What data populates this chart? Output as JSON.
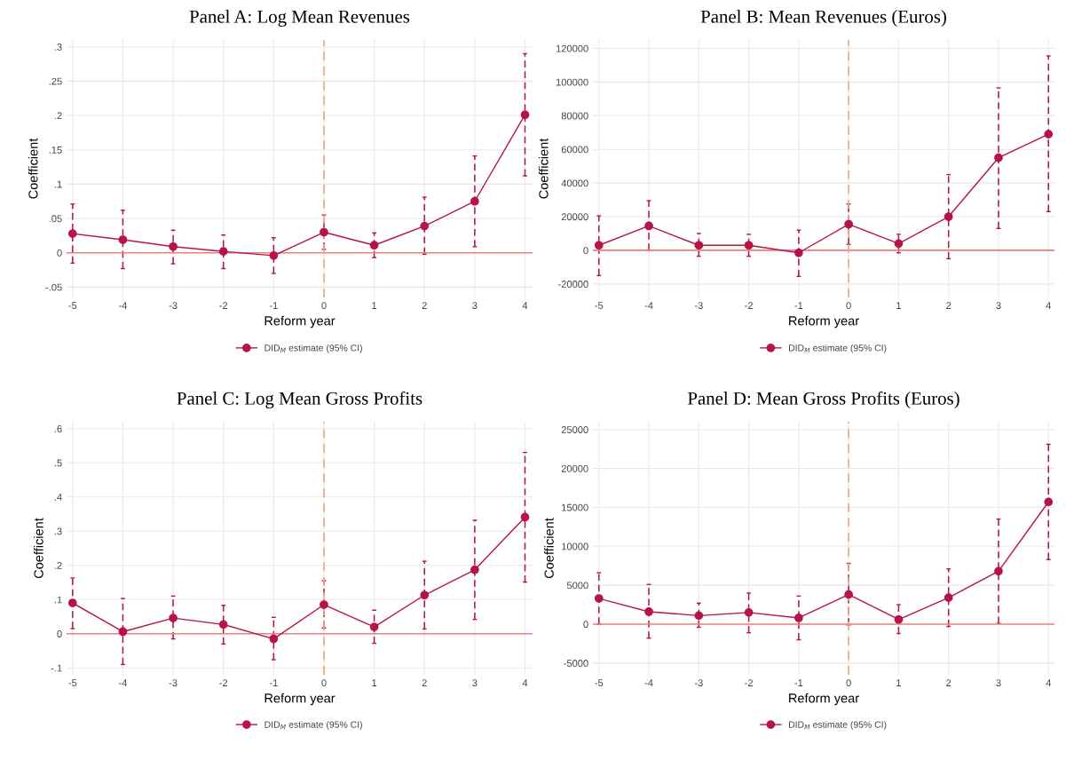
{
  "chart_data": [
    {
      "type": "line",
      "title": "Panel A: Log Mean Revenues",
      "xlabel": "Reform year",
      "ylabel": "Coefficient",
      "x": [
        -5,
        -4,
        -3,
        -2,
        -1,
        0,
        1,
        2,
        3,
        4
      ],
      "series": [
        {
          "name": "DID$_{M}$ estimate (95% CI)",
          "color": "#b5134a",
          "values": [
            0.028,
            0.019,
            0.009,
            0.002,
            -0.004,
            0.03,
            0.011,
            0.039,
            0.075,
            0.201
          ],
          "errors": [
            [
              -0.015,
              0.071
            ],
            [
              -0.023,
              0.062
            ],
            [
              -0.016,
              0.033
            ],
            [
              -0.023,
              0.026
            ],
            [
              -0.03,
              0.022
            ],
            [
              0.005,
              0.055
            ],
            [
              -0.007,
              0.029
            ],
            [
              -0.002,
              0.081
            ],
            [
              0.009,
              0.141
            ],
            [
              0.112,
              0.29
            ]
          ]
        }
      ],
      "xlim": [
        -5.12,
        4.15
      ],
      "xticks": [
        -5,
        -4,
        -3,
        -2,
        -1,
        0,
        1,
        2,
        3,
        4
      ],
      "ylim": [
        -0.065,
        0.31
      ],
      "yticks": [
        {
          "value": -0.05,
          "label": "-.05"
        },
        0,
        {
          "value": 0.05,
          "label": ".05"
        },
        {
          "value": 0.1,
          "label": ".1"
        },
        {
          "value": 0.15,
          "label": ".15"
        },
        {
          "value": 0.2,
          "label": ".2"
        },
        {
          "value": 0.25,
          "label": ".25"
        },
        {
          "value": 0.3,
          "label": ".3"
        }
      ],
      "ref_lines": [
        {
          "axis": "y",
          "value": 0,
          "color": "#f08080",
          "line_style": "solid"
        },
        {
          "axis": "x",
          "value": 0,
          "color": "#f4a582",
          "line_style": "dashed"
        }
      ],
      "grid": true,
      "legend": "bottom",
      "marker": "circle",
      "line_style": "solid"
    },
    {
      "type": "line",
      "title": "Panel B: Mean Revenues (Euros)",
      "xlabel": "Reform year",
      "ylabel": "Coefficient",
      "x": [
        -5,
        -4,
        -3,
        -2,
        -1,
        0,
        1,
        2,
        3,
        4
      ],
      "series": [
        {
          "name": "DID$_{M}$ estimate (95% CI)",
          "color": "#b5134a",
          "values": [
            3000,
            14500,
            3000,
            3000,
            -1500,
            15500,
            4000,
            20000,
            55000,
            69000
          ],
          "errors": [
            [
              -15000,
              20500
            ],
            [
              0,
              29500
            ],
            [
              -3500,
              10000
            ],
            [
              -3500,
              9500
            ],
            [
              -15500,
              12000
            ],
            [
              3500,
              27500
            ],
            [
              -1500,
              9500
            ],
            [
              -5000,
              45000
            ],
            [
              13000,
              96500
            ],
            [
              23000,
              115500
            ]
          ]
        }
      ],
      "xlim": [
        -5.12,
        4.12
      ],
      "xticks": [
        -5,
        -4,
        -3,
        -2,
        -1,
        0,
        1,
        2,
        3,
        4
      ],
      "ylim": [
        -28000,
        125000
      ],
      "yticks": [
        -20000,
        0,
        20000,
        40000,
        60000,
        80000,
        100000,
        120000
      ],
      "ref_lines": [
        {
          "axis": "y",
          "value": 0,
          "color": "#f08080",
          "line_style": "solid"
        },
        {
          "axis": "x",
          "value": 0,
          "color": "#f4a582",
          "line_style": "dashed"
        }
      ],
      "grid": true,
      "legend": "bottom",
      "marker": "circle",
      "line_style": "solid"
    },
    {
      "type": "line",
      "title": "Panel C: Log Mean Gross Profits",
      "xlabel": "Reform year",
      "ylabel": "Coefficient",
      "x": [
        -5,
        -4,
        -3,
        -2,
        -1,
        0,
        1,
        2,
        3,
        4
      ],
      "series": [
        {
          "name": "DID$_{M}$ estimate (95% CI)",
          "color": "#b5134a",
          "values": [
            0.09,
            0.006,
            0.046,
            0.027,
            -0.015,
            0.085,
            0.02,
            0.113,
            0.187,
            0.341
          ],
          "errors": [
            [
              0.015,
              0.163
            ],
            [
              -0.09,
              0.103
            ],
            [
              -0.015,
              0.11
            ],
            [
              -0.03,
              0.083
            ],
            [
              -0.076,
              0.048
            ],
            [
              0.017,
              0.155
            ],
            [
              -0.028,
              0.069
            ],
            [
              0.014,
              0.212
            ],
            [
              0.042,
              0.332
            ],
            [
              0.151,
              0.53
            ]
          ]
        }
      ],
      "xlim": [
        -5.12,
        4.15
      ],
      "xticks": [
        -5,
        -4,
        -3,
        -2,
        -1,
        0,
        1,
        2,
        3,
        4
      ],
      "ylim": [
        -0.12,
        0.62
      ],
      "yticks": [
        {
          "value": -0.1,
          "label": "-.1"
        },
        0,
        {
          "value": 0.1,
          "label": ".1"
        },
        {
          "value": 0.2,
          "label": ".2"
        },
        {
          "value": 0.3,
          "label": ".3"
        },
        {
          "value": 0.4,
          "label": ".4"
        },
        {
          "value": 0.5,
          "label": ".5"
        },
        {
          "value": 0.6,
          "label": ".6"
        }
      ],
      "ref_lines": [
        {
          "axis": "y",
          "value": 0,
          "color": "#f08080",
          "line_style": "solid"
        },
        {
          "axis": "x",
          "value": 0,
          "color": "#f4a582",
          "line_style": "dashed"
        }
      ],
      "grid": true,
      "legend": "bottom",
      "marker": "circle",
      "line_style": "solid"
    },
    {
      "type": "line",
      "title": "Panel D: Mean Gross Profits (Euros)",
      "xlabel": "Reform year",
      "ylabel": "Coefficient",
      "x": [
        -5,
        -4,
        -3,
        -2,
        -1,
        0,
        1,
        2,
        3,
        4
      ],
      "series": [
        {
          "name": "DID$_{M}$ estimate (95% CI)",
          "color": "#b5134a",
          "values": [
            3300,
            1600,
            1100,
            1500,
            800,
            3800,
            600,
            3400,
            6800,
            15700
          ],
          "errors": [
            [
              0,
              6600
            ],
            [
              -1800,
              5100
            ],
            [
              -400,
              2700
            ],
            [
              -1100,
              4000
            ],
            [
              -2000,
              3600
            ],
            [
              -100,
              7800
            ],
            [
              -1200,
              2500
            ],
            [
              -300,
              7100
            ],
            [
              100,
              13500
            ],
            [
              8300,
              23100
            ]
          ]
        }
      ],
      "xlim": [
        -5.12,
        4.12
      ],
      "xticks": [
        -5,
        -4,
        -3,
        -2,
        -1,
        0,
        1,
        2,
        3,
        4
      ],
      "ylim": [
        -6500,
        26000
      ],
      "yticks": [
        -5000,
        0,
        5000,
        10000,
        15000,
        20000,
        25000
      ],
      "ref_lines": [
        {
          "axis": "y",
          "value": 0,
          "color": "#f08080",
          "line_style": "solid"
        },
        {
          "axis": "x",
          "value": 0,
          "color": "#f4a582",
          "line_style": "dashed"
        }
      ],
      "grid": true,
      "legend": "bottom",
      "marker": "circle",
      "line_style": "solid"
    }
  ]
}
